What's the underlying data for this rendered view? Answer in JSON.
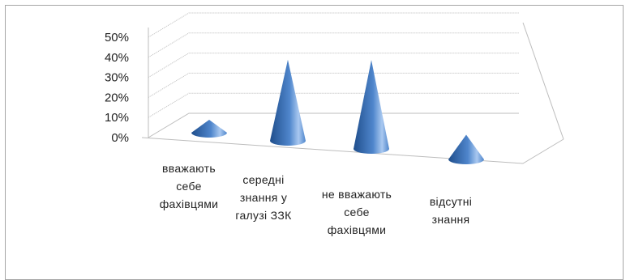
{
  "chart_data": {
    "type": "bar",
    "shape": "cone",
    "three_d": true,
    "title": "",
    "xlabel": "",
    "ylabel": "",
    "ylim": [
      0,
      50
    ],
    "y_ticks": [
      "0%",
      "10%",
      "20%",
      "30%",
      "40%",
      "50%"
    ],
    "grid": true,
    "legend": "none",
    "categories": [
      [
        "вважають",
        "себе",
        "фахівцями"
      ],
      [
        "середні",
        "знання у",
        "галузі ЗЗК"
      ],
      [
        "не вважають",
        "себе",
        "фахівцями"
      ],
      [
        "відсутні",
        "знання"
      ]
    ],
    "series": [
      {
        "values": [
          5,
          40,
          44,
          11
        ]
      }
    ],
    "colors": {
      "cone_dark": "#1f4e8c",
      "cone_mid": "#4f86cc",
      "cone_light": "#a9c8f0",
      "grid": "#bdbdbd"
    }
  }
}
